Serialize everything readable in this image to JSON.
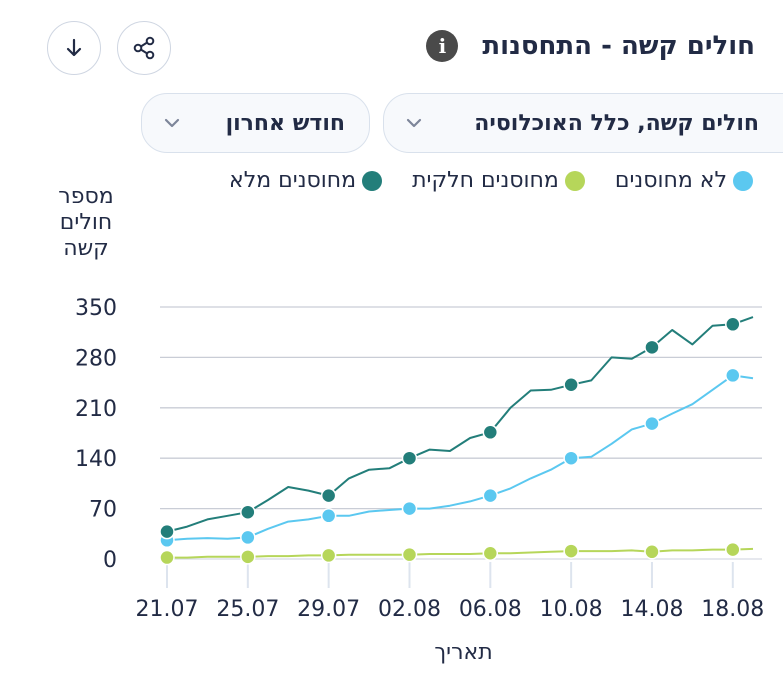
{
  "title": "חולים קשה - התחסנות",
  "info_icon_glyph": "i",
  "filters": {
    "population": "חולים קשה, כלל האוכלוסיה",
    "period": "חודש אחרון"
  },
  "colors": {
    "unvaccinated": "#5bc8f0",
    "partial": "#b6d65a",
    "full": "#237e7a"
  },
  "chart_data": {
    "type": "line",
    "title": "חולים קשה - התחסנות",
    "ylabel": "מספר חולים קשה",
    "xlabel": "תאריך",
    "ylim": [
      0,
      350
    ],
    "yticks": [
      0,
      70,
      140,
      210,
      280,
      350
    ],
    "tick_labels_x": [
      "21.07",
      "25.07",
      "29.07",
      "02.08",
      "06.08",
      "10.08",
      "14.08",
      "18.08"
    ],
    "tick_positions": [
      0,
      4,
      8,
      12,
      16,
      20,
      24,
      28
    ],
    "x_count": 30,
    "marker_every": 4,
    "legend": [
      "לא מחוסנים",
      "מחוסנים חלקית",
      "מחוסנים מלא"
    ],
    "series": [
      {
        "name": "לא מחוסנים",
        "color_key": "unvaccinated",
        "values": [
          26,
          28,
          29,
          28,
          30,
          42,
          52,
          55,
          60,
          60,
          66,
          68,
          70,
          70,
          74,
          80,
          88,
          98,
          112,
          124,
          140,
          142,
          160,
          180,
          188,
          202,
          215,
          235,
          255,
          251
        ]
      },
      {
        "name": "מחוסנים חלקית",
        "color_key": "partial",
        "values": [
          2,
          2,
          3,
          3,
          3,
          4,
          4,
          5,
          5,
          6,
          6,
          6,
          6,
          7,
          7,
          7,
          8,
          8,
          9,
          10,
          11,
          11,
          11,
          12,
          10,
          12,
          12,
          13,
          13,
          14
        ]
      },
      {
        "name": "מחוסנים מלא",
        "color_key": "full",
        "values": [
          38,
          45,
          55,
          60,
          65,
          82,
          100,
          95,
          88,
          112,
          124,
          126,
          140,
          152,
          150,
          168,
          176,
          210,
          234,
          235,
          242,
          248,
          280,
          278,
          294,
          318,
          298,
          324,
          326,
          336
        ]
      }
    ]
  }
}
